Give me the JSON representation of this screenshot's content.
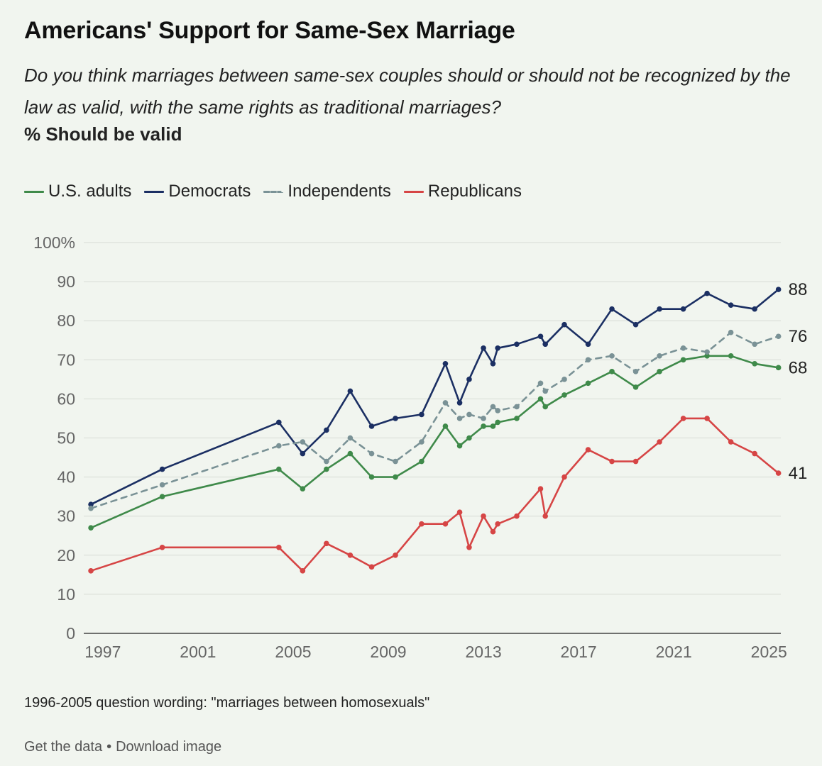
{
  "header": {
    "title": "Americans' Support for Same-Sex Marriage",
    "subtitle": "Do you think marriages between same-sex couples should or should not be recognized by the law as valid, with the same rights as traditional marriages?",
    "measure": "% Should be valid"
  },
  "legend": {
    "items": [
      {
        "label": "U.S. adults",
        "color": "#3f8a4a",
        "style": "solid"
      },
      {
        "label": "Democrats",
        "color": "#1b2f63",
        "style": "solid"
      },
      {
        "label": "Independents",
        "color": "#7a9296",
        "style": "dashed"
      },
      {
        "label": "Republicans",
        "color": "#d64545",
        "style": "solid"
      }
    ]
  },
  "chart_data": {
    "type": "line",
    "title": "Americans' Support for Same-Sex Marriage",
    "ylabel": "% Should be valid",
    "xlabel": "",
    "xlim": [
      1996.2,
      2025.5
    ],
    "ylim": [
      0,
      100
    ],
    "yticks": [
      0,
      10,
      20,
      30,
      40,
      50,
      60,
      70,
      80,
      90,
      100
    ],
    "ytick_labels": [
      "0",
      "10",
      "20",
      "30",
      "40",
      "50",
      "60",
      "70",
      "80",
      "90",
      "100%"
    ],
    "xticks": [
      1997,
      2001,
      2005,
      2009,
      2013,
      2017,
      2021,
      2025
    ],
    "xtick_labels": [
      "1997",
      "2001",
      "2005",
      "2009",
      "2013",
      "2017",
      "2021",
      "2025"
    ],
    "grid": true,
    "x": [
      1996.5,
      1999.5,
      2004.4,
      2005.4,
      2006.4,
      2007.4,
      2008.3,
      2009.3,
      2010.4,
      2011.4,
      2012.0,
      2012.4,
      2013.0,
      2013.4,
      2013.6,
      2014.4,
      2015.4,
      2015.6,
      2016.4,
      2017.4,
      2018.4,
      2019.4,
      2020.4,
      2021.4,
      2022.4,
      2023.4,
      2024.4,
      2025.4
    ],
    "series": [
      {
        "name": "U.S. adults",
        "color": "#3f8a4a",
        "dashed": false,
        "values": [
          27,
          35,
          42,
          37,
          42,
          46,
          40,
          40,
          44,
          53,
          48,
          50,
          53,
          53,
          54,
          55,
          60,
          58,
          61,
          64,
          67,
          63,
          67,
          70,
          71,
          71,
          69,
          68
        ]
      },
      {
        "name": "Democrats",
        "color": "#1b2f63",
        "dashed": false,
        "values": [
          33,
          42,
          54,
          46,
          52,
          62,
          53,
          55,
          56,
          69,
          59,
          65,
          73,
          69,
          73,
          74,
          76,
          74,
          79,
          74,
          83,
          79,
          83,
          83,
          87,
          84,
          83,
          88
        ]
      },
      {
        "name": "Independents",
        "color": "#7a9296",
        "dashed": true,
        "values": [
          32,
          38,
          48,
          49,
          44,
          50,
          46,
          44,
          49,
          59,
          55,
          56,
          55,
          58,
          57,
          58,
          64,
          62,
          65,
          70,
          71,
          67,
          71,
          73,
          72,
          77,
          74,
          76
        ]
      },
      {
        "name": "Republicans",
        "color": "#d64545",
        "dashed": false,
        "values": [
          16,
          22,
          22,
          16,
          23,
          20,
          17,
          20,
          28,
          28,
          31,
          22,
          30,
          26,
          28,
          30,
          37,
          30,
          40,
          47,
          44,
          44,
          49,
          55,
          55,
          49,
          46,
          41
        ]
      }
    ],
    "end_labels": [
      "68",
      "88",
      "76",
      "41"
    ]
  },
  "note": "1996-2005 question wording: \"marriages between homosexuals\"",
  "footer": {
    "get_data": "Get the data",
    "separator": "•",
    "download": "Download image"
  }
}
